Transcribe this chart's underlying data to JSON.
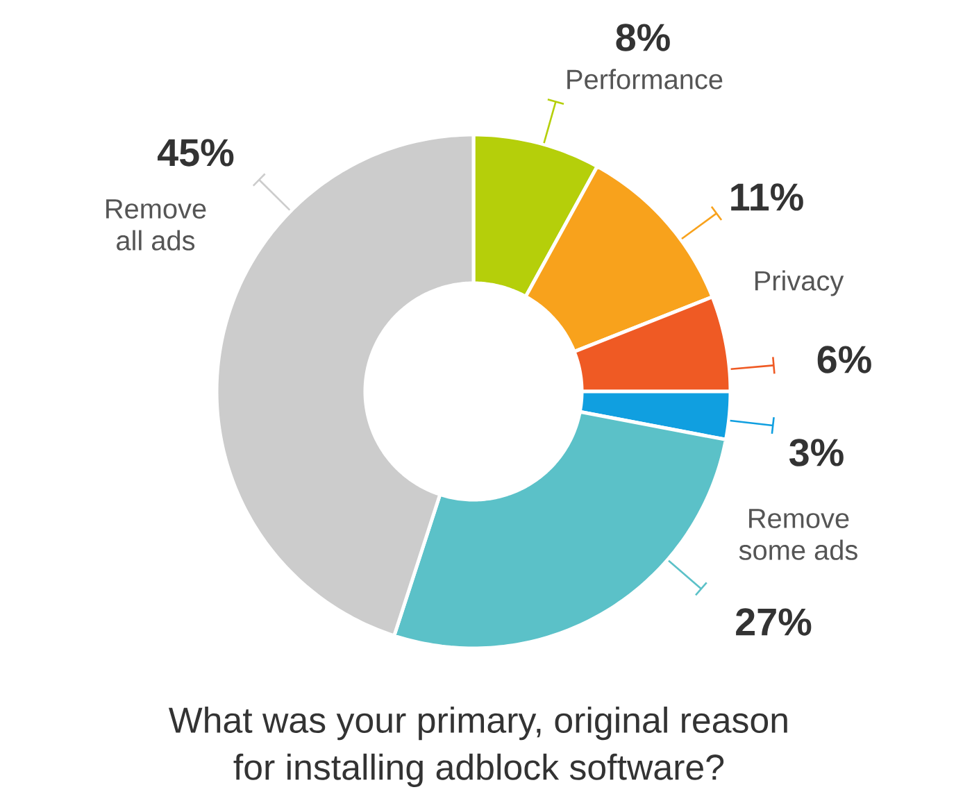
{
  "chart_data": {
    "type": "donut",
    "title": "What was your primary, original reason for installing adblock software?",
    "categories": [
      "Performance",
      "Privacy",
      null,
      null,
      "Remove some ads",
      "Remove all ads"
    ],
    "values": [
      8,
      11,
      6,
      3,
      27,
      45
    ],
    "value_labels": [
      "8%",
      "11%",
      "6%",
      "3%",
      "27%",
      "45%"
    ],
    "colors": [
      "#b5cf0a",
      "#f8a21c",
      "#ef5a24",
      "#109fe0",
      "#5bc1c8",
      "#cccccc"
    ]
  }
}
